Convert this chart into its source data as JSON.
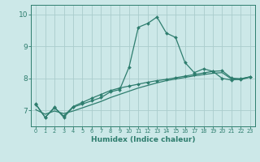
{
  "title": "",
  "xlabel": "Humidex (Indice chaleur)",
  "bg_color": "#cce8e8",
  "line_color": "#2e7d6e",
  "grid_color": "#aacccc",
  "xlim": [
    -0.5,
    23.5
  ],
  "ylim": [
    6.5,
    10.3
  ],
  "yticks": [
    7,
    8,
    9,
    10
  ],
  "xticks": [
    0,
    1,
    2,
    3,
    4,
    5,
    6,
    7,
    8,
    9,
    10,
    11,
    12,
    13,
    14,
    15,
    16,
    17,
    18,
    19,
    20,
    21,
    22,
    23
  ],
  "line1_x": [
    0,
    1,
    2,
    3,
    4,
    5,
    6,
    7,
    8,
    9,
    10,
    11,
    12,
    13,
    14,
    15,
    16,
    17,
    18,
    19,
    20,
    21,
    22,
    23
  ],
  "line1_y": [
    7.2,
    6.78,
    7.1,
    6.78,
    7.1,
    7.2,
    7.3,
    7.4,
    7.58,
    7.65,
    8.35,
    9.6,
    9.72,
    9.92,
    9.42,
    9.28,
    8.5,
    8.18,
    8.3,
    8.22,
    8.0,
    7.95,
    7.98,
    8.05
  ],
  "line2_x": [
    0,
    1,
    2,
    3,
    4,
    5,
    6,
    7,
    8,
    9,
    10,
    11,
    12,
    13,
    14,
    15,
    16,
    17,
    18,
    19,
    20,
    21,
    22,
    23
  ],
  "line2_y": [
    7.18,
    6.78,
    7.08,
    6.82,
    7.12,
    7.25,
    7.38,
    7.5,
    7.62,
    7.7,
    7.76,
    7.82,
    7.88,
    7.93,
    7.97,
    8.02,
    8.07,
    8.12,
    8.17,
    8.22,
    8.24,
    8.01,
    7.99,
    8.05
  ],
  "line3_x": [
    0,
    1,
    2,
    3,
    4,
    5,
    6,
    7,
    8,
    9,
    10,
    11,
    12,
    13,
    14,
    15,
    16,
    17,
    18,
    19,
    20,
    21,
    22,
    23
  ],
  "line3_y": [
    7.02,
    6.88,
    6.98,
    6.9,
    6.98,
    7.08,
    7.18,
    7.28,
    7.4,
    7.5,
    7.6,
    7.7,
    7.78,
    7.86,
    7.93,
    7.98,
    8.03,
    8.08,
    8.12,
    8.16,
    8.18,
    7.98,
    7.96,
    8.04
  ]
}
